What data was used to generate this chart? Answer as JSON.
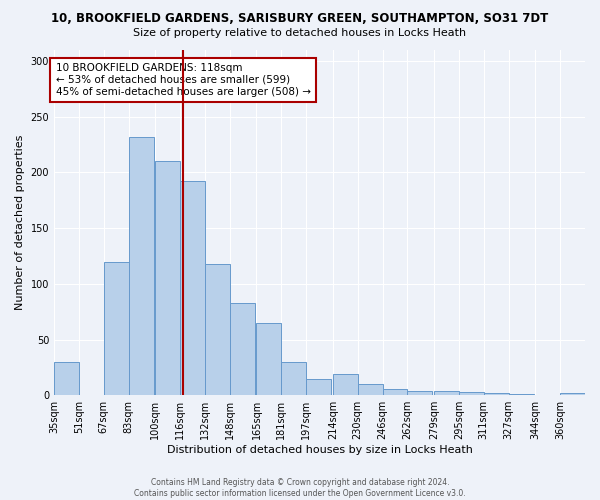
{
  "title1": "10, BROOKFIELD GARDENS, SARISBURY GREEN, SOUTHAMPTON, SO31 7DT",
  "title2": "Size of property relative to detached houses in Locks Heath",
  "xlabel": "Distribution of detached houses by size in Locks Heath",
  "ylabel": "Number of detached properties",
  "bin_labels": [
    "35sqm",
    "51sqm",
    "67sqm",
    "83sqm",
    "100sqm",
    "116sqm",
    "132sqm",
    "148sqm",
    "165sqm",
    "181sqm",
    "197sqm",
    "214sqm",
    "230sqm",
    "246sqm",
    "262sqm",
    "279sqm",
    "295sqm",
    "311sqm",
    "327sqm",
    "344sqm",
    "360sqm"
  ],
  "bin_left_edges": [
    35,
    51,
    67,
    83,
    100,
    116,
    132,
    148,
    165,
    181,
    197,
    214,
    230,
    246,
    262,
    279,
    295,
    311,
    327,
    344,
    360
  ],
  "bin_width": 16,
  "values": [
    30,
    0,
    120,
    232,
    210,
    192,
    118,
    83,
    65,
    30,
    15,
    19,
    10,
    6,
    4,
    4,
    3,
    2,
    1,
    0,
    2
  ],
  "bar_facecolor": "#b8d0ea",
  "bar_edgecolor": "#6699cc",
  "property_size": 118,
  "vline_color": "#aa0000",
  "annotation_text": "10 BROOKFIELD GARDENS: 118sqm\n← 53% of detached houses are smaller (599)\n45% of semi-detached houses are larger (508) →",
  "annotation_box_edgecolor": "#aa0000",
  "annotation_box_facecolor": "#ffffff",
  "ylim": [
    0,
    310
  ],
  "yticks": [
    0,
    50,
    100,
    150,
    200,
    250,
    300
  ],
  "footer_text": "Contains HM Land Registry data © Crown copyright and database right 2024.\nContains public sector information licensed under the Open Government Licence v3.0.",
  "background_color": "#eef2f9",
  "grid_color": "#ffffff"
}
